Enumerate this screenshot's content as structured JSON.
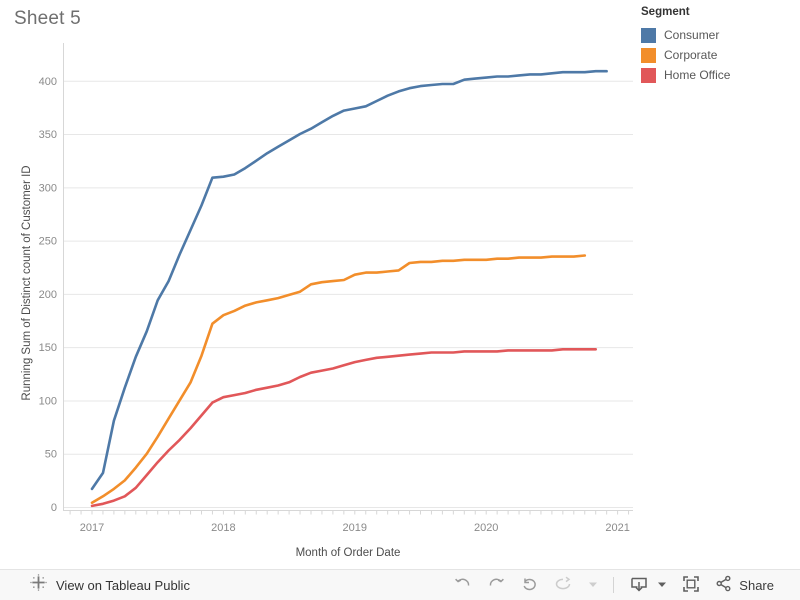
{
  "title": "Sheet 5",
  "legend": {
    "title": "Segment",
    "items": [
      {
        "label": "Consumer",
        "color": "#4e79a7"
      },
      {
        "label": "Corporate",
        "color": "#f28e2b"
      },
      {
        "label": "Home Office",
        "color": "#e15759"
      }
    ]
  },
  "chart_data": {
    "type": "line",
    "title": "Sheet 5",
    "xlabel": "Month of Order Date",
    "ylabel": "Running Sum of Distinct count of Customer ID",
    "x_unit": "month",
    "x_start": "2017-01",
    "year_labels": [
      "2017",
      "2018",
      "2019",
      "2020",
      "2021"
    ],
    "y_ticks": [
      0,
      50,
      100,
      150,
      200,
      250,
      300,
      350,
      400
    ],
    "ylim": [
      0,
      425
    ],
    "grid": true,
    "legend_position": "top-right",
    "series": [
      {
        "name": "Consumer",
        "color": "#4e79a7",
        "values": [
          17,
          32,
          81,
          112,
          141,
          165,
          194,
          212,
          237,
          260,
          283,
          309,
          310,
          312,
          318,
          325,
          332,
          338,
          344,
          350,
          355,
          361,
          367,
          372,
          374,
          376,
          381,
          386,
          390,
          393,
          395,
          396,
          397,
          397,
          401,
          402,
          403,
          404,
          404,
          405,
          406,
          406,
          407,
          408,
          408,
          408,
          409,
          409
        ]
      },
      {
        "name": "Corporate",
        "color": "#f28e2b",
        "values": [
          4,
          10,
          17,
          25,
          37,
          50,
          66,
          83,
          100,
          117,
          142,
          172,
          180,
          184,
          189,
          192,
          194,
          196,
          199,
          202,
          209,
          211,
          212,
          213,
          218,
          220,
          220,
          221,
          222,
          229,
          230,
          230,
          231,
          231,
          232,
          232,
          232,
          233,
          233,
          234,
          234,
          234,
          235,
          235,
          235,
          236
        ]
      },
      {
        "name": "Home Office",
        "color": "#e15759",
        "values": [
          1,
          3,
          6,
          10,
          18,
          30,
          42,
          53,
          63,
          74,
          86,
          98,
          103,
          105,
          107,
          110,
          112,
          114,
          117,
          122,
          126,
          128,
          130,
          133,
          136,
          138,
          140,
          141,
          142,
          143,
          144,
          145,
          145,
          145,
          146,
          146,
          146,
          146,
          147,
          147,
          147,
          147,
          147,
          148,
          148,
          148,
          148
        ]
      }
    ]
  },
  "toolbar": {
    "view_label": "View on Tableau Public",
    "share_label": "Share",
    "icons": [
      "tableau-logo",
      "undo",
      "redo",
      "reset",
      "refresh",
      "refresh-dropdown",
      "download",
      "download-dropdown",
      "fullscreen",
      "share"
    ]
  }
}
